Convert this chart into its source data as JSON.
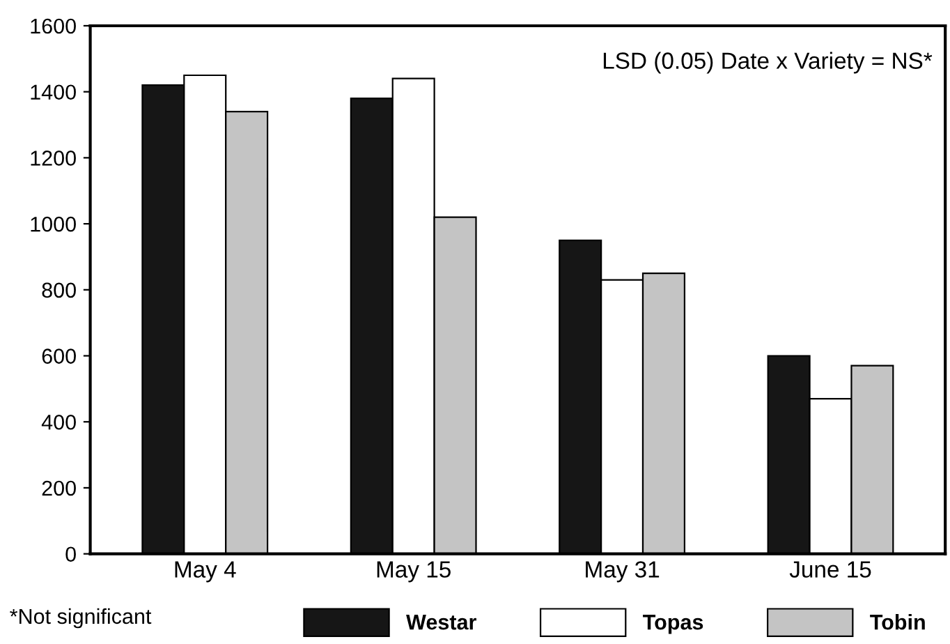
{
  "chart_data": {
    "type": "bar",
    "categories": [
      "May 4",
      "May 15",
      "May 31",
      "June 15"
    ],
    "series": [
      {
        "name": "Westar",
        "color": "#161616",
        "values": [
          1420,
          1380,
          950,
          600
        ]
      },
      {
        "name": "Topas",
        "color": "#ffffff",
        "values": [
          1450,
          1440,
          830,
          470
        ]
      },
      {
        "name": "Tobin",
        "color": "#c4c4c4",
        "values": [
          1340,
          1020,
          850,
          570
        ]
      }
    ],
    "ylim": [
      0,
      1600
    ],
    "yticks": [
      0,
      200,
      400,
      600,
      800,
      1000,
      1200,
      1400,
      1600
    ],
    "grid": false,
    "legend": "bottom right",
    "annotations": [
      "LSD (0.05) Date x Variety = NS*",
      "*Not significant"
    ]
  }
}
